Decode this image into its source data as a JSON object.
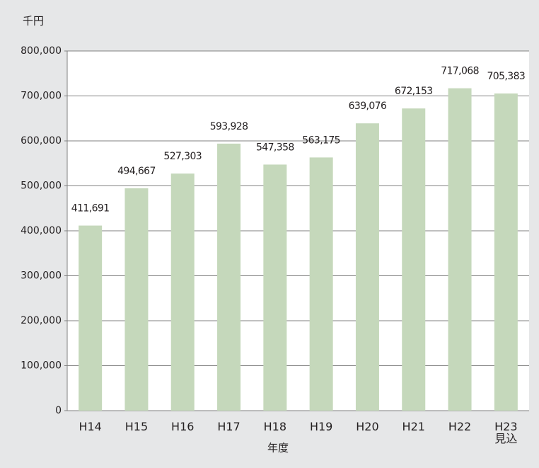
{
  "chart_data": {
    "type": "bar",
    "y_axis_label": "千円",
    "x_axis_label": "年度",
    "categories": [
      "H14",
      "H15",
      "H16",
      "H17",
      "H18",
      "H19",
      "H20",
      "H21",
      "H22",
      "H23\n見込"
    ],
    "values": [
      411691,
      494667,
      527303,
      593928,
      547358,
      563175,
      639076,
      672153,
      717068,
      705383
    ],
    "value_labels": [
      "411,691",
      "494,667",
      "527,303",
      "593,928",
      "547,358",
      "563,175",
      "639,076",
      "672,153",
      "717,068",
      "705,383"
    ],
    "color": "#c5d8bb",
    "ylim": [
      0,
      800000
    ],
    "yticks": [
      0,
      {
        "value": 100000,
        "label": "100,000"
      },
      {
        "value": 200000,
        "label": "200,000"
      },
      {
        "value": 300000,
        "label": "300,000"
      },
      {
        "value": 400000,
        "label": "400,000"
      },
      {
        "value": 500000,
        "label": "500,000"
      },
      {
        "value": 600000,
        "label": "600,000"
      },
      {
        "value": 700000,
        "label": "700,000"
      },
      {
        "value": 800000,
        "label": "800,000"
      }
    ],
    "grid": true
  }
}
